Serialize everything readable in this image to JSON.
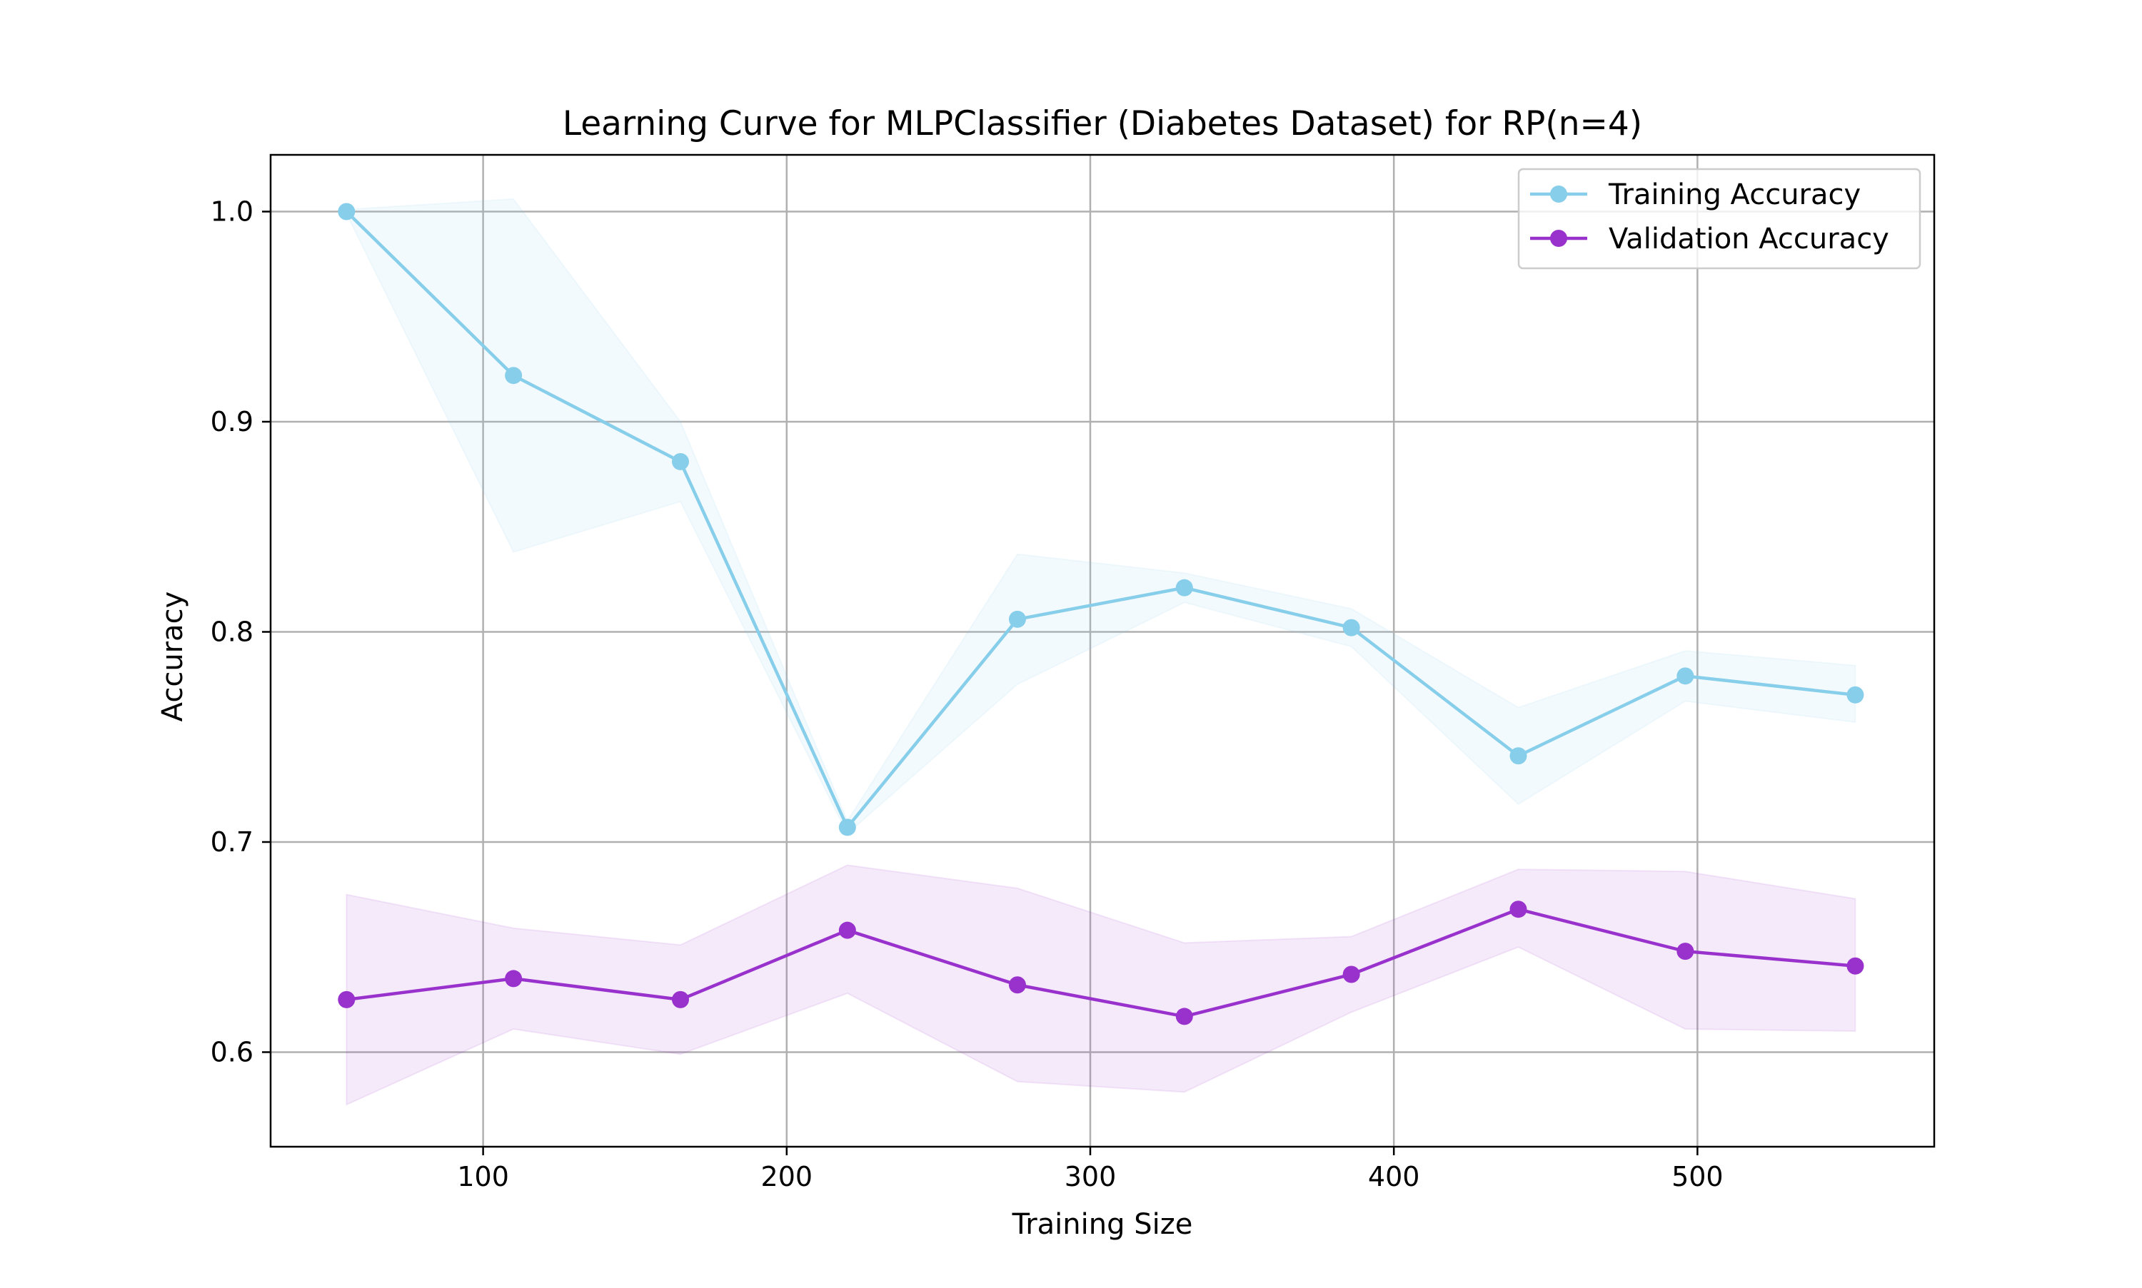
{
  "chart_data": {
    "type": "line",
    "title": "Learning Curve for MLPClassifier (Diabetes Dataset) for RP(n=4)",
    "xlabel": "Training Size",
    "ylabel": "Accuracy",
    "xlim": [
      30,
      578
    ],
    "ylim": [
      0.555,
      1.027
    ],
    "xticks": [
      100,
      200,
      300,
      400,
      500
    ],
    "xtick_labels": [
      "100",
      "200",
      "300",
      "400",
      "500"
    ],
    "yticks": [
      0.6,
      0.7,
      0.8,
      0.9,
      1.0
    ],
    "ytick_labels": [
      "0.6",
      "0.7",
      "0.8",
      "0.9",
      "1.0"
    ],
    "grid": true,
    "legend_position": "upper right",
    "x": [
      55,
      110,
      165,
      220,
      276,
      331,
      386,
      441,
      496,
      552
    ],
    "series": [
      {
        "name": "Training Accuracy",
        "color": "#87ceeb",
        "marker": "circle",
        "values": [
          1.0,
          0.922,
          0.881,
          0.707,
          0.806,
          0.821,
          0.802,
          0.741,
          0.779,
          0.77
        ],
        "band_lower": [
          0.999,
          0.838,
          0.862,
          0.704,
          0.775,
          0.814,
          0.793,
          0.718,
          0.767,
          0.757
        ],
        "band_upper": [
          1.001,
          1.006,
          0.9,
          0.71,
          0.837,
          0.828,
          0.811,
          0.764,
          0.791,
          0.784
        ]
      },
      {
        "name": "Validation Accuracy",
        "color": "#9932cc",
        "marker": "circle",
        "values": [
          0.625,
          0.635,
          0.625,
          0.658,
          0.632,
          0.617,
          0.637,
          0.668,
          0.648,
          0.641
        ],
        "band_lower": [
          0.575,
          0.611,
          0.599,
          0.628,
          0.586,
          0.581,
          0.619,
          0.65,
          0.611,
          0.61
        ],
        "band_upper": [
          0.675,
          0.659,
          0.651,
          0.689,
          0.678,
          0.652,
          0.655,
          0.687,
          0.686,
          0.673
        ]
      }
    ]
  }
}
